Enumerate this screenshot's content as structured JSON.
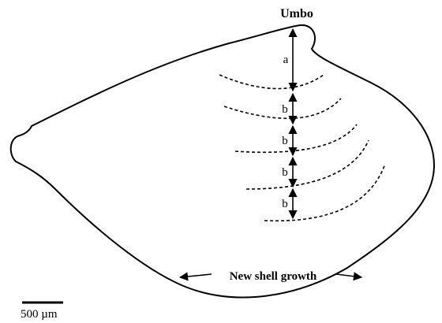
{
  "title": "Umbo",
  "segments": [
    {
      "label": "a"
    },
    {
      "label": "b"
    },
    {
      "label": "b"
    },
    {
      "label": "b"
    },
    {
      "label": "b"
    }
  ],
  "annotation": "New shell growth",
  "scale_bar": "500 µm"
}
